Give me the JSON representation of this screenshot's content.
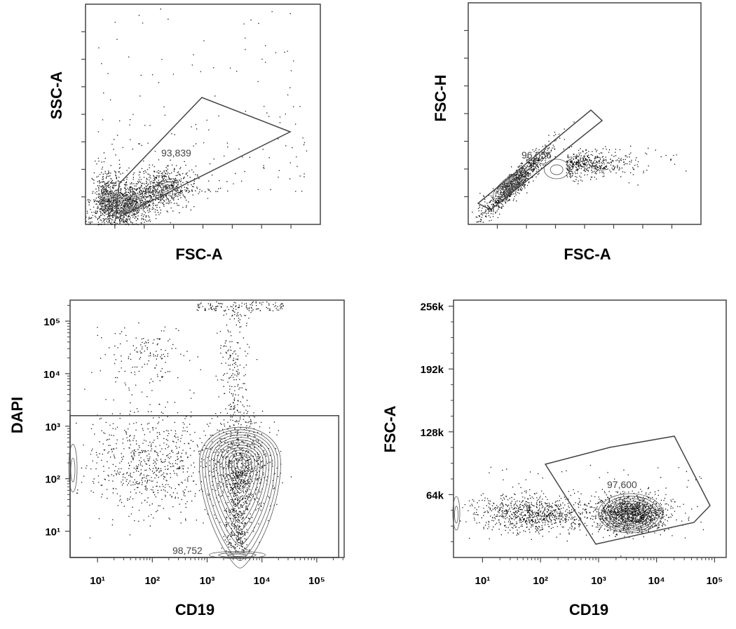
{
  "colors": {
    "frame": "#444444",
    "dots": "#111111",
    "contour": "#555555",
    "gate": "#444444"
  },
  "chart_data": [
    {
      "type": "scatter",
      "subtype": "flow-cytometry-contour-with-outliers",
      "xlabel": "FSC-A",
      "ylabel": "SSC-A",
      "scale": "linear",
      "xticks_labeled": false,
      "yticks_labeled": false,
      "gate": {
        "shape": "polygon",
        "label": "93,839"
      },
      "populations": [
        {
          "name_shown": false,
          "center": [
            0.18,
            0.09
          ],
          "spread": [
            0.05,
            0.035
          ],
          "weight": "main"
        },
        {
          "name_shown": false,
          "center": [
            0.09,
            0.11
          ],
          "spread": [
            0.02,
            0.05
          ],
          "weight": "secondary"
        },
        {
          "name_shown": false,
          "center": [
            0.34,
            0.17
          ],
          "spread": [
            0.04,
            0.03
          ],
          "weight": "secondary"
        }
      ]
    },
    {
      "type": "scatter",
      "subtype": "flow-cytometry-contour-with-outliers",
      "xlabel": "FSC-A",
      "ylabel": "FSC-H",
      "scale": "linear",
      "xticks_labeled": false,
      "yticks_labeled": false,
      "gate": {
        "shape": "polygon",
        "label": "96,056"
      },
      "populations": [
        {
          "name_shown": false,
          "center": [
            0.18,
            0.18
          ],
          "spread": [
            0.05,
            0.05
          ],
          "weight": "main"
        },
        {
          "name_shown": false,
          "center": [
            0.38,
            0.25
          ],
          "spread": [
            0.04,
            0.03
          ],
          "weight": "secondary"
        }
      ]
    },
    {
      "type": "scatter",
      "subtype": "flow-cytometry-contour-with-outliers",
      "xlabel": "CD19",
      "ylabel": "DAPI",
      "scale": "log",
      "xticks": [
        "10¹",
        "10²",
        "10³",
        "10⁴",
        "10⁵"
      ],
      "yticks": [
        "10¹",
        "10²",
        "10³",
        "10⁴",
        "10⁵"
      ],
      "xticks_exp": [
        1,
        2,
        3,
        4,
        5
      ],
      "yticks_exp": [
        1,
        2,
        3,
        4,
        5
      ],
      "xlim_exp": [
        0.5,
        5.5
      ],
      "ylim_exp": [
        0.5,
        5.4
      ],
      "gate": {
        "shape": "rectangle",
        "x_exp": [
          0.5,
          5.4
        ],
        "y_exp": [
          0.5,
          3.2
        ],
        "label": "98,752"
      },
      "populations": [
        {
          "name_shown": false,
          "center_exp": [
            3.6,
            2.3
          ],
          "spread_exp": [
            0.28,
            0.45
          ],
          "weight": "main"
        },
        {
          "name_shown": false,
          "center_exp": [
            2.0,
            2.3
          ],
          "spread_exp": [
            0.6,
            0.5
          ],
          "weight": "diffuse"
        },
        {
          "name_shown": false,
          "center_exp": [
            1.9,
            4.3
          ],
          "spread_exp": [
            0.4,
            0.3
          ],
          "weight": "sparse"
        }
      ]
    },
    {
      "type": "scatter",
      "subtype": "flow-cytometry-contour-with-outliers",
      "xlabel": "CD19",
      "ylabel": "FSC-A",
      "xscale": "log",
      "yscale": "linear",
      "xticks": [
        "10¹",
        "10²",
        "10³",
        "10⁴",
        "10⁵"
      ],
      "xticks_exp": [
        1,
        2,
        3,
        4,
        5
      ],
      "xlim_exp": [
        0.5,
        5.2
      ],
      "yticks": [
        "64k",
        "128k",
        "192k",
        "256k"
      ],
      "yticks_values": [
        64000,
        128000,
        192000,
        256000
      ],
      "ylim": [
        0,
        262144
      ],
      "gate": {
        "shape": "polygon",
        "label": "97,600"
      },
      "populations": [
        {
          "name_shown": false,
          "center": [
            3.55,
            45000
          ],
          "spread": [
            0.3,
            9000
          ],
          "weight": "main"
        },
        {
          "name_shown": false,
          "center": [
            1.9,
            45000
          ],
          "spread": [
            0.5,
            9000
          ],
          "weight": "diffuse"
        }
      ]
    }
  ]
}
